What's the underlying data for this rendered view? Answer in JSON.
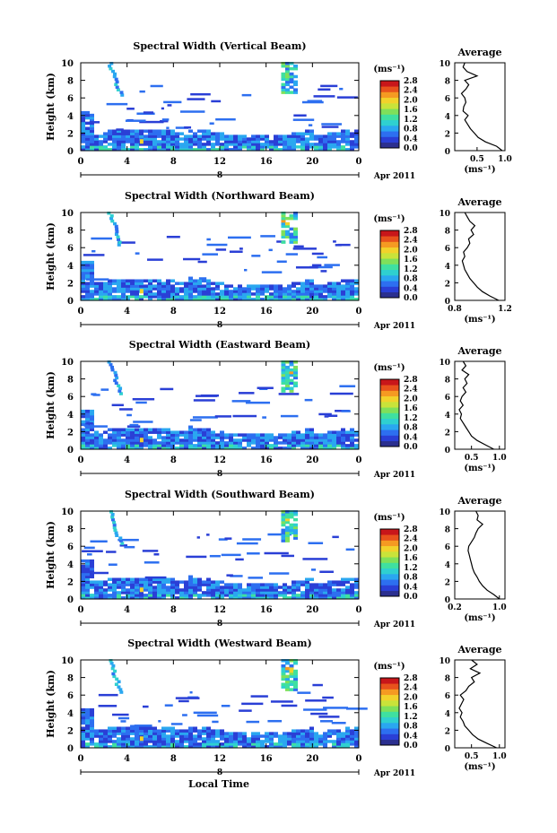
{
  "figure": {
    "date_label": "Apr 2011",
    "xlabel_bottom": "Local Time",
    "ylabel": "Height (km)",
    "colorbar_unit": "(ms⁻¹)",
    "colorbar_ticks": [
      "0.0",
      "0.4",
      "0.8",
      "1.2",
      "1.6",
      "2.0",
      "2.4",
      "2.8"
    ],
    "colorbar_colors": [
      "#2b2f8f",
      "#2a3fd6",
      "#2d6ff0",
      "#2aa7f0",
      "#2fd0d0",
      "#3fe0a0",
      "#7fe05a",
      "#c9e33a",
      "#f2d22b",
      "#f59a22",
      "#e8521c",
      "#c8161a"
    ],
    "avg_title": "Average",
    "avg_unit": "(ms⁻¹)",
    "x_ticks": [
      "0",
      "4",
      "8",
      "12",
      "16",
      "20",
      "0"
    ],
    "day_marker": "8",
    "y_ticks": [
      "0",
      "2",
      "4",
      "6",
      "8",
      "10"
    ]
  },
  "chart_data": [
    {
      "type": "heatmap",
      "title": "Spectral Width (Vertical Beam)",
      "xlabel": "",
      "ylabel": "Height (km)",
      "xlim": [
        0,
        24
      ],
      "ylim": [
        0,
        10
      ],
      "colorbar": {
        "range": [
          0.0,
          2.8
        ],
        "unit": "ms⁻¹"
      },
      "average_profile": {
        "xlim": [
          0.1,
          1.0
        ],
        "x_ticks": [
          "0.5",
          "1.0"
        ],
        "heights": [
          0,
          0.5,
          1,
          1.5,
          2,
          2.5,
          3,
          3.5,
          4,
          4.5,
          5,
          5.5,
          6,
          6.5,
          7,
          7.5,
          8,
          8.5,
          9,
          9.5,
          10
        ],
        "values": [
          0.95,
          0.85,
          0.65,
          0.52,
          0.45,
          0.38,
          0.33,
          0.28,
          0.34,
          0.25,
          0.26,
          0.3,
          0.28,
          0.22,
          0.3,
          0.35,
          0.28,
          0.5,
          0.32,
          0.25,
          0.28
        ]
      }
    },
    {
      "type": "heatmap",
      "title": "Spectral Width (Northward Beam)",
      "xlabel": "",
      "ylabel": "Height (km)",
      "xlim": [
        0,
        24
      ],
      "ylim": [
        0,
        10
      ],
      "colorbar": {
        "range": [
          0.0,
          2.8
        ],
        "unit": "ms⁻¹"
      },
      "average_profile": {
        "xlim": [
          0.8,
          1.2
        ],
        "x_ticks": [
          "0.8",
          "1.2"
        ],
        "heights": [
          0,
          0.5,
          1,
          1.5,
          2,
          2.5,
          3,
          3.5,
          4,
          4.5,
          5,
          5.5,
          6,
          6.5,
          7,
          7.5,
          8,
          8.5,
          9,
          9.5,
          10
        ],
        "values": [
          1.15,
          1.08,
          1.02,
          0.98,
          0.95,
          0.92,
          0.9,
          0.88,
          0.87,
          0.86,
          0.88,
          0.87,
          0.9,
          0.92,
          0.91,
          0.95,
          0.93,
          0.96,
          0.92,
          0.9,
          0.88
        ]
      }
    },
    {
      "type": "heatmap",
      "title": "Spectral Width (Eastward Beam)",
      "xlabel": "",
      "ylabel": "Height (km)",
      "xlim": [
        0,
        24
      ],
      "ylim": [
        0,
        10
      ],
      "colorbar": {
        "range": [
          0.0,
          2.8
        ],
        "unit": "ms⁻¹"
      },
      "average_profile": {
        "xlim": [
          0.2,
          1.1
        ],
        "x_ticks": [
          "0.5",
          "1.0"
        ],
        "heights": [
          0,
          0.5,
          1,
          1.5,
          2,
          2.5,
          3,
          3.5,
          4,
          4.5,
          5,
          5.5,
          6,
          6.5,
          7,
          7.5,
          8,
          8.5,
          9,
          9.5,
          10
        ],
        "values": [
          0.9,
          0.75,
          0.6,
          0.5,
          0.45,
          0.4,
          0.35,
          0.3,
          0.32,
          0.28,
          0.35,
          0.3,
          0.33,
          0.4,
          0.35,
          0.42,
          0.38,
          0.45,
          0.33,
          0.4,
          0.35
        ]
      }
    },
    {
      "type": "heatmap",
      "title": "Spectral Width (Southward Beam)",
      "xlabel": "",
      "ylabel": "Height (km)",
      "xlim": [
        0,
        24
      ],
      "ylim": [
        0,
        10
      ],
      "colorbar": {
        "range": [
          0.0,
          2.8
        ],
        "unit": "ms⁻¹"
      },
      "average_profile": {
        "xlim": [
          0.2,
          1.1
        ],
        "x_ticks": [
          "0.2",
          "1.0"
        ],
        "heights": [
          0,
          0.5,
          1,
          1.5,
          2,
          2.5,
          3,
          3.5,
          4,
          4.5,
          5,
          5.5,
          6,
          6.5,
          7,
          7.5,
          8,
          8.5,
          9,
          9.5,
          10
        ],
        "values": [
          1.0,
          0.9,
          0.78,
          0.7,
          0.64,
          0.6,
          0.55,
          0.52,
          0.5,
          0.48,
          0.46,
          0.44,
          0.45,
          0.5,
          0.55,
          0.58,
          0.62,
          0.7,
          0.6,
          0.62,
          0.58
        ]
      }
    },
    {
      "type": "heatmap",
      "title": "Spectral Width (Westward Beam)",
      "xlabel": "Local Time",
      "ylabel": "Height (km)",
      "xlim": [
        0,
        24
      ],
      "ylim": [
        0,
        10
      ],
      "colorbar": {
        "range": [
          0.0,
          2.8
        ],
        "unit": "ms⁻¹"
      },
      "average_profile": {
        "xlim": [
          0.2,
          1.1
        ],
        "x_ticks": [
          "0.5",
          "1.0"
        ],
        "heights": [
          0,
          0.5,
          1,
          1.5,
          2,
          2.5,
          3,
          3.5,
          4,
          4.5,
          5,
          5.5,
          6,
          6.5,
          7,
          7.5,
          8,
          8.5,
          9,
          9.5,
          10
        ],
        "values": [
          0.95,
          0.78,
          0.62,
          0.52,
          0.45,
          0.38,
          0.35,
          0.3,
          0.33,
          0.28,
          0.32,
          0.36,
          0.3,
          0.4,
          0.45,
          0.55,
          0.5,
          0.65,
          0.48,
          0.6,
          0.5
        ]
      }
    }
  ]
}
